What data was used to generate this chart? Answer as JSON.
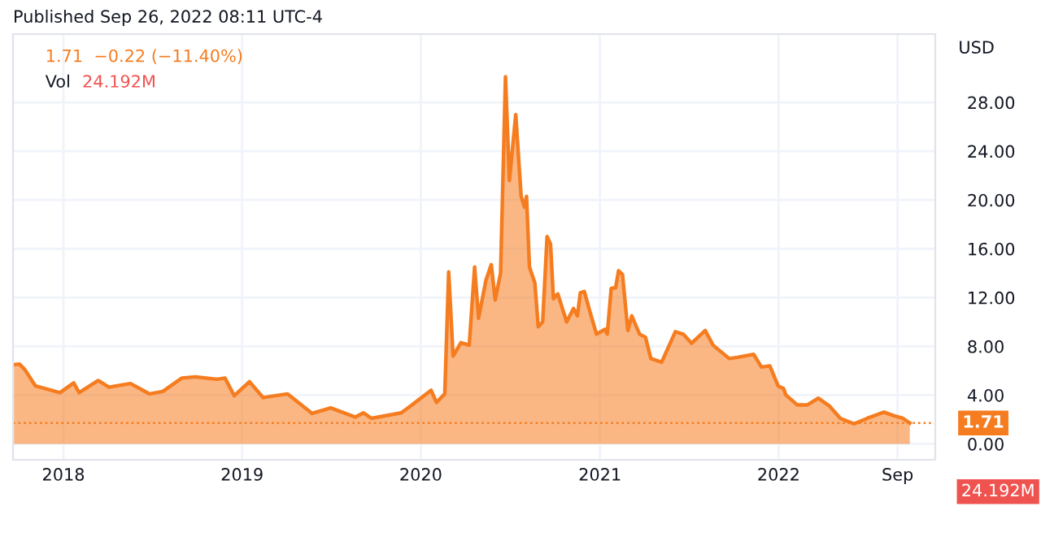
{
  "chart_data": {
    "type": "area",
    "title": "Published Sep 26, 2022 08:11 UTC-4",
    "ylabel": "USD",
    "annotations": [
      "1.71  −0.22 (−11.40%)",
      "Vol",
      "24.192M",
      "24.192M"
    ],
    "series": [
      {
        "color": "#f57c1f",
        "x": [
          "2017-09-22",
          "2017-10-03",
          "2017-10-14",
          "2017-11-05",
          "2017-12-25",
          "2018-01-22",
          "2018-02-02",
          "2018-03-13",
          "2018-04-04",
          "2018-05-18",
          "2018-06-26",
          "2018-07-23",
          "2018-08-31",
          "2018-09-28",
          "2018-11-11",
          "2018-11-27",
          "2018-12-16",
          "2019-01-16",
          "2019-02-13",
          "2019-04-04",
          "2019-05-24",
          "2019-07-01",
          "2019-08-20",
          "2019-09-06",
          "2019-09-22",
          "2019-11-22",
          "2019-12-14",
          "2020-01-22",
          "2020-02-02",
          "2020-02-19",
          "2020-02-27",
          "2020-03-07",
          "2020-03-23",
          "2020-04-09",
          "2020-04-20",
          "2020-04-28",
          "2020-05-13",
          "2020-05-24",
          "2020-06-01",
          "2020-06-12",
          "2020-06-22",
          "2020-06-30",
          "2020-07-13",
          "2020-07-24",
          "2020-07-31",
          "2020-08-04",
          "2020-08-10",
          "2020-08-21",
          "2020-08-28",
          "2020-09-06",
          "2020-09-15",
          "2020-09-22",
          "2020-09-28",
          "2020-10-07",
          "2020-10-25",
          "2020-11-08",
          "2020-11-16",
          "2020-11-22",
          "2020-11-30",
          "2020-12-14",
          "2020-12-25",
          "2021-01-11",
          "2021-01-16",
          "2021-01-24",
          "2021-02-02",
          "2021-02-08",
          "2021-02-16",
          "2021-02-27",
          "2021-03-07",
          "2021-03-23",
          "2021-04-04",
          "2021-04-15",
          "2021-05-07",
          "2021-06-04",
          "2021-06-20",
          "2021-07-07",
          "2021-08-04",
          "2021-08-20",
          "2021-09-22",
          "2021-10-09",
          "2021-11-11",
          "2021-11-27",
          "2021-12-14",
          "2021-12-31",
          "2022-01-11",
          "2022-01-16",
          "2022-02-08",
          "2022-03-01",
          "2022-03-23",
          "2022-04-15",
          "2022-05-07",
          "2022-06-04",
          "2022-07-01",
          "2022-08-04",
          "2022-08-25",
          "2022-09-12",
          "2022-09-26"
        ],
        "values": [
          6.5,
          6.55,
          6.1,
          4.75,
          4.2,
          5.0,
          4.2,
          5.2,
          4.65,
          4.95,
          4.1,
          4.3,
          5.4,
          5.5,
          5.3,
          5.4,
          3.95,
          5.1,
          3.8,
          4.1,
          2.5,
          2.95,
          2.2,
          2.55,
          2.1,
          2.55,
          3.2,
          4.4,
          3.4,
          4.1,
          14.1,
          7.2,
          8.3,
          8.1,
          14.5,
          10.3,
          13.4,
          14.7,
          11.8,
          14.0,
          30.1,
          21.6,
          27.0,
          20.3,
          19.4,
          20.3,
          14.5,
          13.2,
          9.6,
          10.0,
          17.0,
          16.4,
          11.9,
          12.3,
          10.0,
          11.1,
          10.5,
          12.4,
          12.5,
          10.5,
          9.0,
          9.4,
          9.0,
          12.75,
          12.8,
          14.2,
          13.9,
          9.3,
          10.5,
          9.0,
          8.75,
          7.0,
          6.7,
          9.2,
          9.0,
          8.25,
          9.3,
          8.1,
          7.0,
          7.1,
          7.35,
          6.3,
          6.4,
          4.75,
          4.55,
          4.0,
          3.2,
          3.2,
          3.75,
          3.1,
          2.1,
          1.65,
          2.1,
          2.6,
          2.3,
          2.1,
          1.71
        ]
      }
    ],
    "xlim": [
      "2017-09-20",
      "2022-11-17"
    ],
    "xticks": [
      {
        "value": "2018-01-01",
        "label": "2018"
      },
      {
        "value": "2019-01-01",
        "label": "2019"
      },
      {
        "value": "2020-01-01",
        "label": "2020"
      },
      {
        "value": "2021-01-01",
        "label": "2021"
      },
      {
        "value": "2022-01-01",
        "label": "2022"
      },
      {
        "value": "2022-09-01",
        "label": "Sep"
      }
    ],
    "ylim": [
      -1.3,
      33.6
    ],
    "yticks": [
      {
        "value": 0,
        "label": "0.00"
      },
      {
        "value": 4,
        "label": "4.00"
      },
      {
        "value": 8,
        "label": "8.00"
      },
      {
        "value": 12,
        "label": "12.00"
      },
      {
        "value": 16,
        "label": "16.00"
      },
      {
        "value": 20,
        "label": "20.00"
      },
      {
        "value": 24,
        "label": "24.00"
      },
      {
        "value": 28,
        "label": "28.00"
      }
    ],
    "ref_lines": [
      {
        "axis": "y",
        "value": 1.71,
        "label": "1.71",
        "color": "#f57c1f",
        "line_style": "dotted"
      }
    ],
    "grid": true
  }
}
